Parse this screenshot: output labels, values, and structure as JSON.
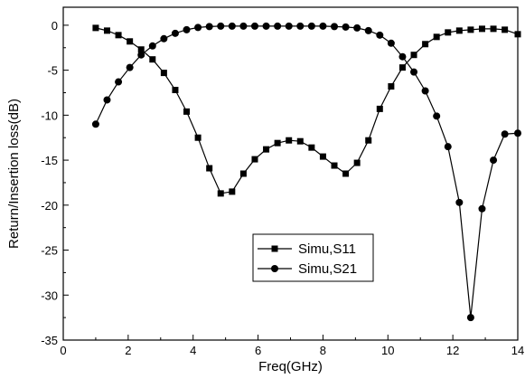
{
  "chart_data": {
    "type": "line",
    "title": "",
    "xlabel": "Freq(GHz)",
    "ylabel": "Return/Insertion loss(dB)",
    "xlim": [
      0,
      14
    ],
    "ylim": [
      -35,
      2
    ],
    "xticks": [
      "0",
      "2",
      "4",
      "6",
      "8",
      "10",
      "12",
      "14"
    ],
    "yticks": [
      "0",
      "-5",
      "-10",
      "-15",
      "-20",
      "-25",
      "-30",
      "-35"
    ],
    "grid": false,
    "legend_position": "lower-center",
    "series": [
      {
        "name": "Simu,S11",
        "marker": "square",
        "color": "#000000",
        "x": [
          1.0,
          1.35,
          1.7,
          2.05,
          2.4,
          2.75,
          3.1,
          3.45,
          3.8,
          4.15,
          4.5,
          4.85,
          5.2,
          5.55,
          5.9,
          6.25,
          6.6,
          6.95,
          7.3,
          7.65,
          8.0,
          8.35,
          8.7,
          9.05,
          9.4,
          9.75,
          10.1,
          10.45,
          10.8,
          11.15,
          11.5,
          11.85,
          12.2,
          12.55,
          12.9,
          13.25,
          13.6,
          14.0
        ],
        "y": [
          -0.3,
          -0.6,
          -1.1,
          -1.8,
          -2.7,
          -3.8,
          -5.3,
          -7.2,
          -9.6,
          -12.5,
          -15.9,
          -18.7,
          -18.5,
          -16.5,
          -14.9,
          -13.8,
          -13.1,
          -12.8,
          -12.9,
          -13.6,
          -14.6,
          -15.6,
          -16.5,
          -15.3,
          -12.8,
          -9.3,
          -6.8,
          -4.7,
          -3.3,
          -2.1,
          -1.3,
          -0.8,
          -0.6,
          -0.5,
          -0.4,
          -0.4,
          -0.5,
          -1.0
        ]
      },
      {
        "name": "Simu,S21",
        "marker": "circle",
        "color": "#000000",
        "x": [
          1.0,
          1.35,
          1.7,
          2.05,
          2.4,
          2.75,
          3.1,
          3.45,
          3.8,
          4.15,
          4.5,
          4.85,
          5.2,
          5.55,
          5.9,
          6.25,
          6.6,
          6.95,
          7.3,
          7.65,
          8.0,
          8.35,
          8.7,
          9.05,
          9.4,
          9.75,
          10.1,
          10.45,
          10.8,
          11.15,
          11.5,
          11.85,
          12.2,
          12.55,
          12.9,
          13.25,
          13.6,
          14.0
        ],
        "y": [
          -11.0,
          -8.3,
          -6.3,
          -4.7,
          -3.3,
          -2.3,
          -1.5,
          -0.9,
          -0.5,
          -0.25,
          -0.15,
          -0.1,
          -0.1,
          -0.1,
          -0.1,
          -0.1,
          -0.1,
          -0.1,
          -0.1,
          -0.1,
          -0.1,
          -0.15,
          -0.2,
          -0.3,
          -0.6,
          -1.1,
          -2.0,
          -3.5,
          -5.2,
          -7.3,
          -10.1,
          -13.5,
          -19.7,
          -32.5,
          -20.4,
          -15.0,
          -12.1,
          -12.0
        ]
      }
    ]
  }
}
